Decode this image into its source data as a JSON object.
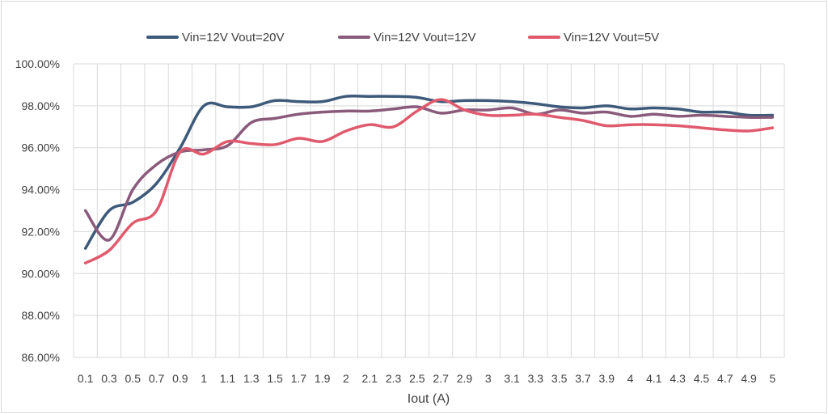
{
  "chart_data": {
    "type": "line",
    "title": "",
    "xlabel": "Iout (A)",
    "ylabel": "",
    "ylim": [
      86,
      100
    ],
    "y_ticks": [
      "86.00%",
      "88.00%",
      "90.00%",
      "92.00%",
      "94.00%",
      "96.00%",
      "98.00%",
      "100.00%"
    ],
    "x_tick_labels": [
      "0.1",
      "0.3",
      "0.5",
      "0.7",
      "0.9",
      "1",
      "1.1",
      "1.3",
      "1.5",
      "1.7",
      "1.9",
      "2",
      "2.1",
      "2.3",
      "2.5",
      "2.7",
      "2.9",
      "3",
      "3.1",
      "3.3",
      "3.5",
      "3.7",
      "3.9",
      "4",
      "4.1",
      "4.3",
      "4.5",
      "4.7",
      "4.9",
      "5"
    ],
    "grid": true,
    "legend_position": "top",
    "series": [
      {
        "name": "Vin=12V Vout=20V",
        "color": "#3d5a7a",
        "values": [
          91.2,
          93.0,
          93.4,
          94.3,
          96.0,
          98.0,
          97.95,
          97.95,
          98.25,
          98.2,
          98.2,
          98.45,
          98.45,
          98.45,
          98.4,
          98.2,
          98.25,
          98.25,
          98.2,
          98.1,
          97.95,
          97.9,
          98.0,
          97.85,
          97.9,
          97.85,
          97.7,
          97.7,
          97.55,
          97.55
        ]
      },
      {
        "name": "Vin=12V Vout=12V",
        "color": "#8a5a7a",
        "values": [
          93.0,
          91.6,
          94.0,
          95.2,
          95.8,
          95.9,
          96.1,
          97.2,
          97.4,
          97.6,
          97.7,
          97.75,
          97.75,
          97.85,
          97.95,
          97.65,
          97.8,
          97.8,
          97.9,
          97.6,
          97.8,
          97.65,
          97.7,
          97.5,
          97.6,
          97.5,
          97.55,
          97.5,
          97.45,
          97.45
        ]
      },
      {
        "name": "Vin=12V Vout=5V",
        "color": "#e05a6e",
        "values": [
          90.5,
          91.1,
          92.4,
          93.0,
          95.8,
          95.7,
          96.3,
          96.2,
          96.15,
          96.45,
          96.3,
          96.8,
          97.1,
          97.0,
          97.75,
          98.3,
          97.8,
          97.55,
          97.55,
          97.6,
          97.45,
          97.3,
          97.05,
          97.1,
          97.1,
          97.05,
          96.95,
          96.85,
          96.8,
          96.95
        ]
      }
    ]
  }
}
